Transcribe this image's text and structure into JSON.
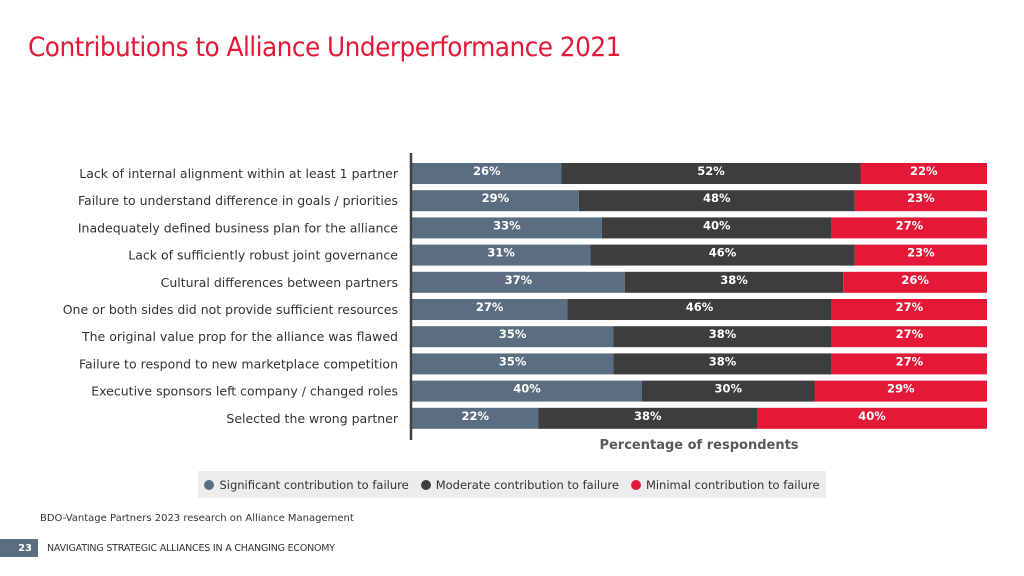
{
  "title": "Contributions to Alliance Underperformance 2021",
  "chart_data": {
    "type": "bar",
    "orientation": "horizontal",
    "stacked": true,
    "normalized": true,
    "title": "Contributions to Alliance Underperformance 2021",
    "xlabel": "Percentage of respondents",
    "ylabel": "",
    "xlim": [
      0,
      100
    ],
    "grid": false,
    "legend_position": "bottom",
    "categories": [
      "Lack of internal alignment within at least 1 partner",
      "Failure to understand difference in goals / priorities",
      "Inadequately defined business plan for the alliance",
      "Lack of sufficiently robust joint governance",
      "Cultural differences between partners",
      "One or both sides did not provide sufficient resources",
      "The original value prop for the alliance was flawed",
      "Failure to respond to new marketplace competition",
      "Executive sponsors left company / changed roles",
      "Selected the wrong partner"
    ],
    "series": [
      {
        "name": "Significant contribution to failure",
        "color": "#5b6d80",
        "values": [
          26,
          29,
          33,
          31,
          37,
          27,
          35,
          35,
          40,
          22
        ]
      },
      {
        "name": "Moderate contribution to failure",
        "color": "#3d3d3d",
        "values": [
          52,
          48,
          40,
          46,
          38,
          46,
          38,
          38,
          30,
          38
        ]
      },
      {
        "name": "Minimal contribution to failure",
        "color": "#e31937",
        "values": [
          22,
          23,
          27,
          23,
          26,
          27,
          27,
          27,
          29,
          40
        ]
      }
    ]
  },
  "legend": [
    {
      "label": "Significant contribution to failure",
      "color": "#5b6d80"
    },
    {
      "label": "Moderate contribution to failure",
      "color": "#3d3d3d"
    },
    {
      "label": "Minimal contribution to failure",
      "color": "#e31937"
    }
  ],
  "source": "BDO-Vantage Partners 2023 research on Alliance Management",
  "footer": {
    "page_number": "23",
    "text": "NAVIGATING STRATEGIC ALLIANCES IN A CHANGING ECONOMY"
  }
}
